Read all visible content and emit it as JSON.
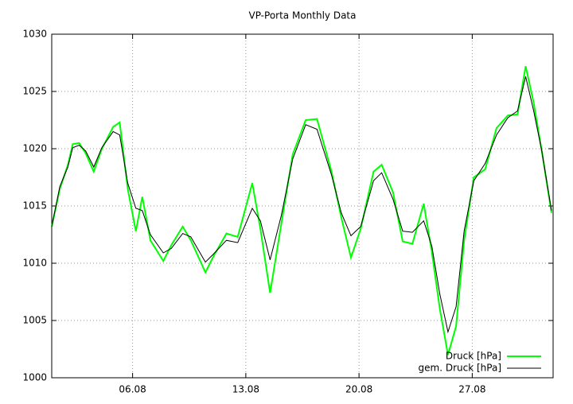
{
  "chart_data": {
    "type": "line",
    "title": "VP-Porta Monthly Data",
    "x": [
      1,
      1.5,
      2,
      2.3,
      2.7,
      3.1,
      3.6,
      4.1,
      4.8,
      5.2,
      5.7,
      6.2,
      6.6,
      7.1,
      7.9,
      8.4,
      9.1,
      9.6,
      10.5,
      11.0,
      11.8,
      12.5,
      13.4,
      13.9,
      14.5,
      15.2,
      15.9,
      16.7,
      17.4,
      18.3,
      18.9,
      19.5,
      20.1,
      20.9,
      21.4,
      22.1,
      22.7,
      23.3,
      24.0,
      24.5,
      25.0,
      25.5,
      26.0,
      26.5,
      27.1,
      27.8,
      28.5,
      29.2,
      29.8,
      30.3,
      30.8,
      31.3,
      31.9
    ],
    "series": [
      {
        "name": "Druck [hPa]",
        "color": "#00ff00",
        "values": [
          1013.2,
          1016.5,
          1018.6,
          1020.4,
          1020.5,
          1019.6,
          1018.0,
          1020.0,
          1021.9,
          1022.3,
          1016.5,
          1012.8,
          1015.8,
          1012.0,
          1010.2,
          1011.6,
          1013.2,
          1012.0,
          1009.2,
          1010.6,
          1012.6,
          1012.3,
          1017.0,
          1013.0,
          1007.4,
          1013.5,
          1019.5,
          1022.5,
          1022.6,
          1018.0,
          1014.0,
          1010.5,
          1013.0,
          1018.0,
          1018.6,
          1016.2,
          1011.9,
          1011.7,
          1015.2,
          1011.0,
          1006.0,
          1002.0,
          1004.5,
          1012.0,
          1017.5,
          1018.2,
          1021.8,
          1022.9,
          1023.0,
          1027.2,
          1024.0,
          1019.8,
          1014.4
        ]
      },
      {
        "name": "gem. Druck [hPa]",
        "color": "#000000",
        "values": [
          1013.2,
          1016.7,
          1018.4,
          1020.1,
          1020.3,
          1019.8,
          1018.4,
          1020.1,
          1021.5,
          1021.2,
          1017.0,
          1014.8,
          1014.6,
          1012.5,
          1010.9,
          1011.3,
          1012.6,
          1012.3,
          1010.1,
          1010.8,
          1012.0,
          1011.8,
          1014.8,
          1013.7,
          1010.3,
          1014.2,
          1019.1,
          1022.1,
          1021.7,
          1017.7,
          1014.4,
          1012.4,
          1013.2,
          1017.2,
          1017.9,
          1015.6,
          1012.8,
          1012.7,
          1013.7,
          1011.5,
          1007.3,
          1004.0,
          1006.2,
          1012.8,
          1017.2,
          1018.7,
          1021.2,
          1022.7,
          1023.3,
          1026.3,
          1023.3,
          1019.8,
          1014.6
        ]
      }
    ],
    "xlim": [
      1,
      32
    ],
    "xticks": [
      {
        "value": 6,
        "label": "06.08"
      },
      {
        "value": 13,
        "label": "13.08"
      },
      {
        "value": 20,
        "label": "20.08"
      },
      {
        "value": 27,
        "label": "27.08"
      }
    ],
    "ylim": [
      1000,
      1030
    ],
    "yticks": [
      1000,
      1005,
      1010,
      1015,
      1020,
      1025,
      1030
    ],
    "grid": true,
    "legend": "bottom-right"
  }
}
